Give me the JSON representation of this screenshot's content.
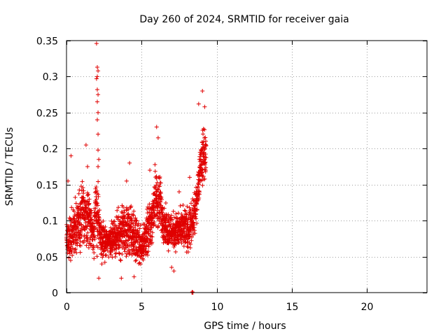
{
  "chart_data": {
    "type": "scatter",
    "title": "Day 260 of 2024, SRMTID for receiver gaia",
    "xlabel": "GPS time / hours",
    "ylabel": "SRMTID / TECUs",
    "xlim": [
      0,
      24
    ],
    "ylim": [
      0,
      0.35
    ],
    "xticks": [
      0,
      5,
      10,
      15,
      20
    ],
    "xtick_labels": [
      "0",
      "5",
      "10",
      "15",
      "20"
    ],
    "yticks": [
      0,
      0.05,
      0.1,
      0.15,
      0.2,
      0.25,
      0.3,
      0.35
    ],
    "ytick_labels": [
      "0",
      "0.05",
      "0.1",
      "0.15",
      "0.2",
      "0.25",
      "0.3",
      "0.35"
    ],
    "grid": true,
    "marker": "+",
    "color": "#e00000",
    "legend": "none",
    "envelope": [
      [
        0.0,
        0.035,
        0.105
      ],
      [
        0.3,
        0.035,
        0.125
      ],
      [
        0.6,
        0.04,
        0.14
      ],
      [
        0.9,
        0.045,
        0.165
      ],
      [
        1.2,
        0.05,
        0.17
      ],
      [
        1.5,
        0.045,
        0.16
      ],
      [
        1.8,
        0.04,
        0.12
      ],
      [
        2.0,
        0.04,
        0.2
      ],
      [
        2.25,
        0.03,
        0.12
      ],
      [
        2.6,
        0.04,
        0.1
      ],
      [
        3.0,
        0.045,
        0.105
      ],
      [
        3.4,
        0.04,
        0.12
      ],
      [
        3.8,
        0.035,
        0.14
      ],
      [
        4.2,
        0.03,
        0.14
      ],
      [
        4.6,
        0.03,
        0.12
      ],
      [
        5.0,
        0.03,
        0.1
      ],
      [
        5.3,
        0.035,
        0.12
      ],
      [
        5.6,
        0.05,
        0.14
      ],
      [
        5.9,
        0.07,
        0.19
      ],
      [
        6.2,
        0.07,
        0.18
      ],
      [
        6.5,
        0.06,
        0.13
      ],
      [
        6.8,
        0.05,
        0.125
      ],
      [
        7.2,
        0.05,
        0.12
      ],
      [
        7.6,
        0.05,
        0.125
      ],
      [
        8.0,
        0.045,
        0.13
      ],
      [
        8.3,
        0.045,
        0.135
      ],
      [
        8.6,
        0.08,
        0.15
      ],
      [
        8.9,
        0.13,
        0.22
      ],
      [
        9.15,
        0.14,
        0.25
      ],
      [
        9.3,
        0.14,
        0.24
      ]
    ],
    "outliers": [
      [
        2.0,
        0.346
      ],
      [
        2.05,
        0.313
      ],
      [
        2.1,
        0.308
      ],
      [
        2.05,
        0.3
      ],
      [
        2.0,
        0.297
      ],
      [
        2.05,
        0.282
      ],
      [
        2.1,
        0.275
      ],
      [
        2.05,
        0.265
      ],
      [
        2.1,
        0.25
      ],
      [
        2.05,
        0.24
      ],
      [
        2.1,
        0.22
      ],
      [
        2.1,
        0.198
      ],
      [
        2.15,
        0.185
      ],
      [
        2.1,
        0.175
      ],
      [
        2.15,
        0.02
      ],
      [
        1.3,
        0.205
      ],
      [
        1.4,
        0.175
      ],
      [
        3.65,
        0.02
      ],
      [
        4.5,
        0.022
      ],
      [
        4.2,
        0.18
      ],
      [
        4.0,
        0.155
      ],
      [
        6.0,
        0.23
      ],
      [
        6.1,
        0.215
      ],
      [
        5.55,
        0.17
      ],
      [
        7.0,
        0.035
      ],
      [
        7.15,
        0.03
      ],
      [
        7.5,
        0.14
      ],
      [
        9.05,
        0.28
      ],
      [
        8.2,
        0.16
      ],
      [
        8.8,
        0.262
      ],
      [
        9.2,
        0.258
      ],
      [
        0.1,
        0.155
      ],
      [
        0.3,
        0.19
      ],
      [
        8.35,
        0.0
      ],
      [
        8.4,
        0.0
      ],
      [
        8.42,
        0.0
      ],
      [
        8.38,
        0.001
      ]
    ]
  }
}
